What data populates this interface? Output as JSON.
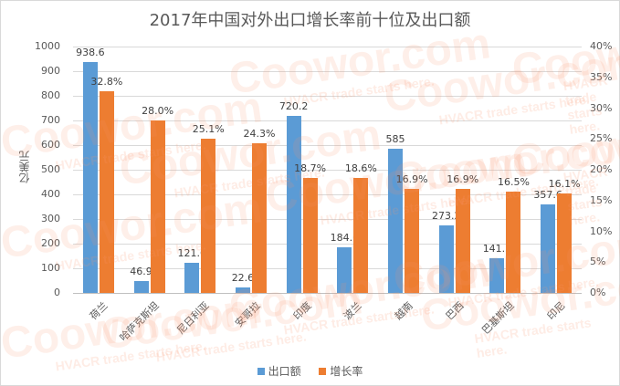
{
  "chart_data": {
    "type": "bar",
    "title": "2017年中国对外出口增长率前十位及出口额",
    "xlabel": "",
    "ylabel": "亿美元",
    "ylabel_right": "",
    "categories": [
      "荷兰",
      "哈萨克斯坦",
      "尼日利亚",
      "安哥拉",
      "印度",
      "波兰",
      "越南",
      "巴西",
      "巴基斯坦",
      "印尼"
    ],
    "series": [
      {
        "name": "出口额",
        "axis": "left",
        "color": "#5b9bd5",
        "values": [
          938.6,
          46.9,
          121.6,
          22.6,
          720.2,
          184.6,
          585,
          273.2,
          141.3,
          357.6
        ],
        "labels": [
          "938.6",
          "46.9",
          "121.6",
          "22.6",
          "720.2",
          "184.6",
          "585",
          "273.2",
          "141.3",
          "357.6"
        ]
      },
      {
        "name": "增长率",
        "axis": "right",
        "color": "#ed7d31",
        "values": [
          32.8,
          28.0,
          25.1,
          24.3,
          18.7,
          18.6,
          16.9,
          16.9,
          16.5,
          16.1
        ],
        "labels": [
          "32.8%",
          "28.0%",
          "25.1%",
          "24.3%",
          "18.7%",
          "18.6%",
          "16.9%",
          "16.9%",
          "16.5%",
          "16.1%"
        ]
      }
    ],
    "ylim": [
      0,
      1000
    ],
    "ylim_right": [
      0,
      40
    ],
    "left_ticks": [
      "0",
      "100",
      "200",
      "300",
      "400",
      "500",
      "600",
      "700",
      "800",
      "900",
      "1000"
    ],
    "right_ticks": [
      "0%",
      "5%",
      "10%",
      "15%",
      "20%",
      "25%",
      "30%",
      "35%",
      "40%"
    ],
    "grid": true,
    "legend_position": "bottom"
  },
  "watermark": {
    "brand": "Coowor.com",
    "tagline": "HVACR trade starts here."
  }
}
